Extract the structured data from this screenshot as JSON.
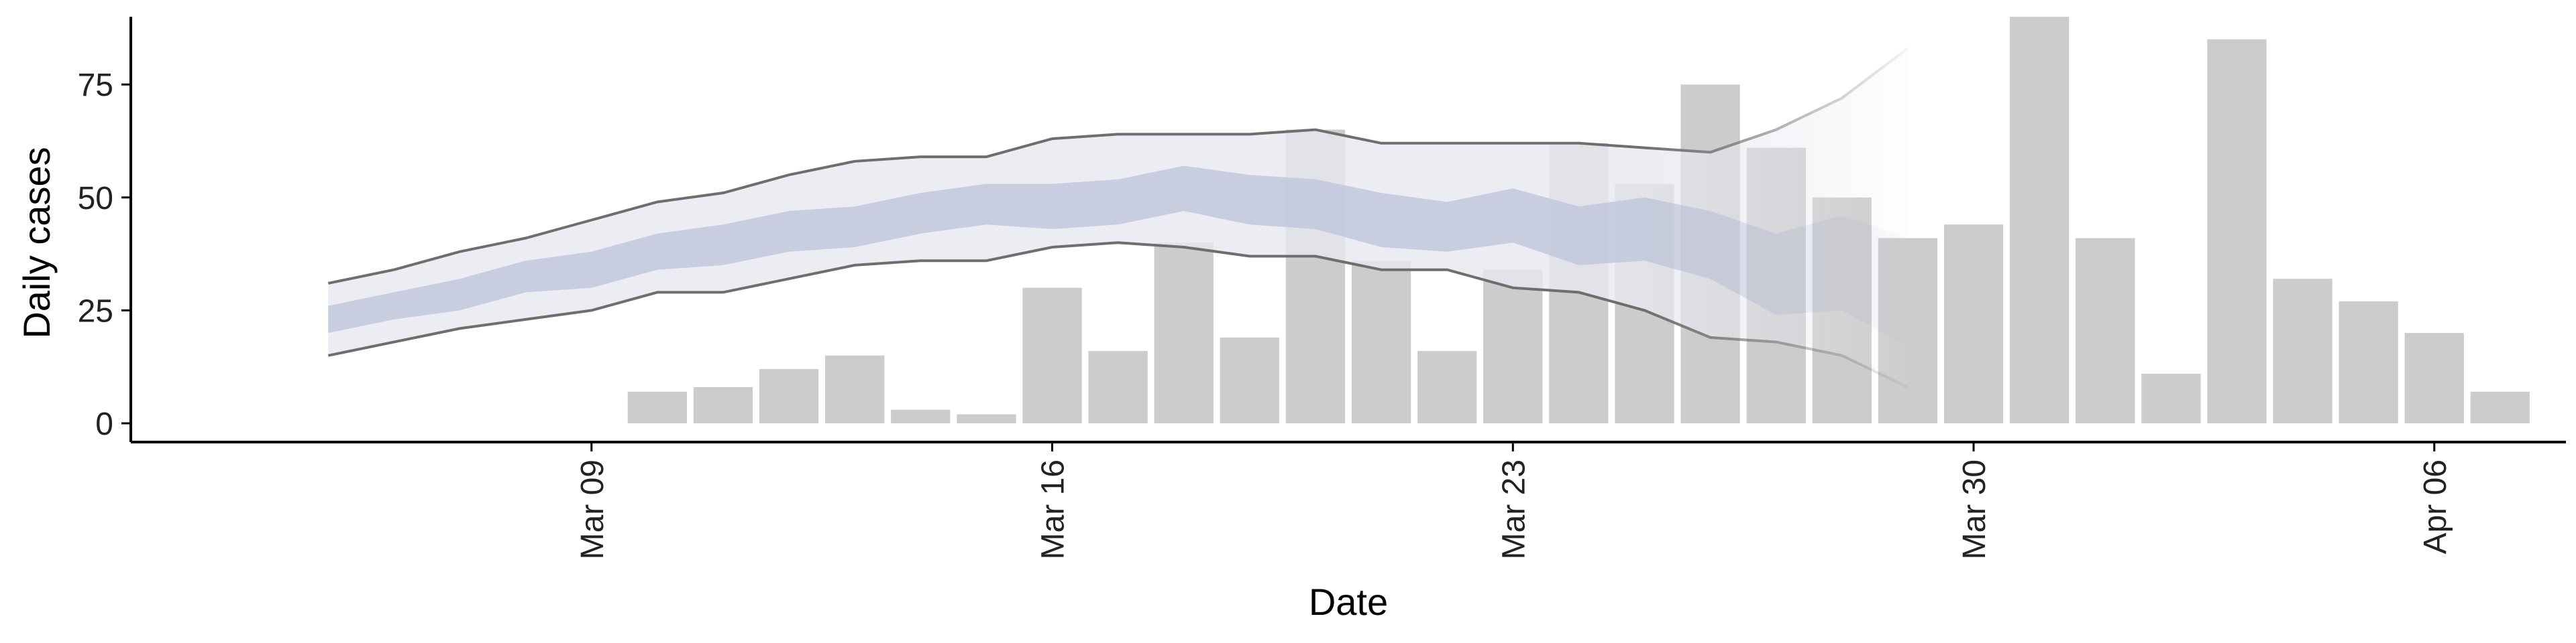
{
  "chart_data": {
    "type": "bar",
    "xlabel": "Date",
    "ylabel": "Daily cases",
    "xlim": [
      "2020-03-02",
      "2020-04-08"
    ],
    "ylim": [
      0,
      90
    ],
    "x_ticks": [
      {
        "date": "2020-03-09",
        "label": "Mar 09"
      },
      {
        "date": "2020-03-16",
        "label": "Mar 16"
      },
      {
        "date": "2020-03-23",
        "label": "Mar 23"
      },
      {
        "date": "2020-03-30",
        "label": "Mar 30"
      },
      {
        "date": "2020-04-06",
        "label": "Apr 06"
      }
    ],
    "y_ticks": [
      0,
      25,
      50,
      75
    ],
    "grid": false,
    "bar_color": "#cccccc",
    "bars": {
      "dates": [
        "2020-03-10",
        "2020-03-11",
        "2020-03-12",
        "2020-03-13",
        "2020-03-14",
        "2020-03-15",
        "2020-03-16",
        "2020-03-17",
        "2020-03-18",
        "2020-03-19",
        "2020-03-20",
        "2020-03-21",
        "2020-03-22",
        "2020-03-23",
        "2020-03-24",
        "2020-03-25",
        "2020-03-26",
        "2020-03-27",
        "2020-03-28",
        "2020-03-29",
        "2020-03-30",
        "2020-03-31",
        "2020-04-01",
        "2020-04-02",
        "2020-04-03",
        "2020-04-04",
        "2020-04-05",
        "2020-04-06",
        "2020-04-07"
      ],
      "values": [
        7,
        8,
        12,
        15,
        3,
        2,
        30,
        16,
        40,
        19,
        65,
        36,
        16,
        34,
        62,
        53,
        75,
        61,
        50,
        41,
        44,
        90,
        41,
        11,
        85,
        32,
        27,
        20,
        7
      ]
    },
    "bands": {
      "outer_color": "#e6e8f0",
      "inner_color": "#bcc2d8",
      "line_color": "#6e6e6e",
      "dates": [
        "2020-03-05",
        "2020-03-06",
        "2020-03-07",
        "2020-03-08",
        "2020-03-09",
        "2020-03-10",
        "2020-03-11",
        "2020-03-12",
        "2020-03-13",
        "2020-03-14",
        "2020-03-15",
        "2020-03-16",
        "2020-03-17",
        "2020-03-18",
        "2020-03-19",
        "2020-03-20",
        "2020-03-21",
        "2020-03-22",
        "2020-03-23",
        "2020-03-24",
        "2020-03-25",
        "2020-03-26",
        "2020-03-27",
        "2020-03-28",
        "2020-03-29"
      ],
      "outer_upper": [
        31,
        34,
        38,
        41,
        45,
        49,
        51,
        55,
        58,
        59,
        59,
        63,
        64,
        64,
        64,
        65,
        62,
        62,
        62,
        62,
        61,
        60,
        65,
        72,
        83
      ],
      "outer_lower": [
        15,
        18,
        21,
        23,
        25,
        29,
        29,
        32,
        35,
        36,
        36,
        39,
        40,
        39,
        37,
        37,
        34,
        34,
        30,
        29,
        25,
        19,
        18,
        15,
        8
      ],
      "inner_upper": [
        26,
        29,
        32,
        36,
        38,
        42,
        44,
        47,
        48,
        51,
        53,
        53,
        54,
        57,
        55,
        54,
        51,
        49,
        52,
        48,
        50,
        47,
        42,
        46,
        41
      ],
      "inner_lower": [
        20,
        23,
        25,
        29,
        30,
        34,
        35,
        38,
        39,
        42,
        44,
        43,
        44,
        47,
        44,
        43,
        39,
        38,
        40,
        35,
        36,
        32,
        24,
        25,
        17
      ]
    }
  }
}
